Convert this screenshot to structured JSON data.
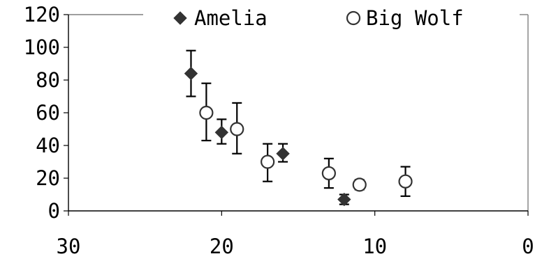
{
  "chart_data": {
    "type": "scatter",
    "title": "",
    "xlabel": "",
    "ylabel": "",
    "x_reversed": true,
    "xlim": [
      30,
      0
    ],
    "ylim": [
      0,
      120
    ],
    "x_ticks": [
      30,
      20,
      10,
      0
    ],
    "y_ticks": [
      0,
      20,
      40,
      60,
      80,
      100,
      120
    ],
    "grid": false,
    "legend_position": "top",
    "series": [
      {
        "name": "Amelia",
        "marker": "filled-diamond",
        "color": "#333333",
        "points": [
          {
            "x": 22,
            "y": 84,
            "err_low": 70,
            "err_high": 98
          },
          {
            "x": 20,
            "y": 48,
            "err_low": 41,
            "err_high": 56
          },
          {
            "x": 16,
            "y": 35,
            "err_low": 30,
            "err_high": 41
          },
          {
            "x": 12,
            "y": 7,
            "err_low": 4,
            "err_high": 10
          }
        ]
      },
      {
        "name": "Big Wolf",
        "marker": "open-circle",
        "color": "#333333",
        "points": [
          {
            "x": 21,
            "y": 60,
            "err_low": 43,
            "err_high": 78
          },
          {
            "x": 19,
            "y": 50,
            "err_low": 35,
            "err_high": 66
          },
          {
            "x": 17,
            "y": 30,
            "err_low": 18,
            "err_high": 41
          },
          {
            "x": 13,
            "y": 23,
            "err_low": 14,
            "err_high": 32
          },
          {
            "x": 11,
            "y": 16,
            "err_low": 13,
            "err_high": 19
          },
          {
            "x": 8,
            "y": 18,
            "err_low": 9,
            "err_high": 27
          }
        ]
      }
    ]
  }
}
